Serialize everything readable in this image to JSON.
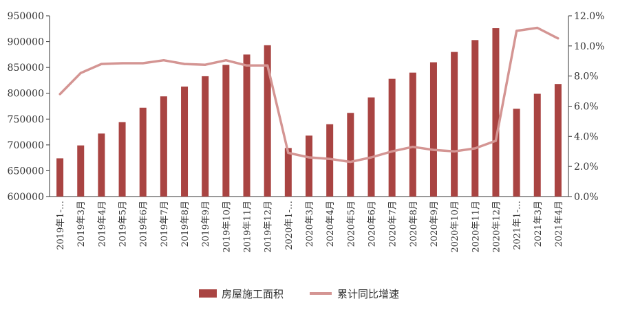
{
  "chart_data": {
    "type": "bar+line",
    "categories": [
      "2019年1-…",
      "2019年3月",
      "2019年4月",
      "2019年5月",
      "2019年6月",
      "2019年7月",
      "2019年8月",
      "2019年9月",
      "2019年10月",
      "2019年11月",
      "2019年12月",
      "2020年1-…",
      "2020年3月",
      "2020年4月",
      "2020年5月",
      "2020年6月",
      "2020年7月",
      "2020年8月",
      "2020年9月",
      "2020年10月",
      "2020年11月",
      "2020年12月",
      "2021年1-…",
      "2021年3月",
      "2021年4月"
    ],
    "series": [
      {
        "name": "房屋施工面积",
        "type": "bar",
        "axis": "left",
        "color": "#a94442",
        "values": [
          674000,
          699000,
          722000,
          744000,
          772000,
          794000,
          813000,
          833000,
          855000,
          875000,
          893000,
          694000,
          718000,
          740000,
          762000,
          792000,
          828000,
          840000,
          860000,
          880000,
          903000,
          926000,
          770000,
          799000,
          818000
        ]
      },
      {
        "name": "累计同比增速",
        "type": "line",
        "axis": "right",
        "color": "#d49593",
        "values": [
          6.8,
          8.2,
          8.8,
          8.85,
          8.85,
          9.05,
          8.8,
          8.75,
          9.05,
          8.7,
          8.7,
          2.9,
          2.6,
          2.5,
          2.3,
          2.6,
          3.0,
          3.3,
          3.1,
          3.0,
          3.2,
          3.7,
          11.0,
          11.2,
          10.5
        ]
      }
    ],
    "y_left": {
      "ylim": [
        600000,
        950000
      ],
      "ticks": [
        "600000",
        "650000",
        "700000",
        "750000",
        "800000",
        "850000",
        "900000",
        "950000"
      ]
    },
    "y_right": {
      "ylim": [
        0,
        12
      ],
      "ticks": [
        "0.0%",
        "2.0%",
        "4.0%",
        "6.0%",
        "8.0%",
        "10.0%",
        "12.0%"
      ]
    },
    "grid": false,
    "legend_position": "bottom-center"
  }
}
